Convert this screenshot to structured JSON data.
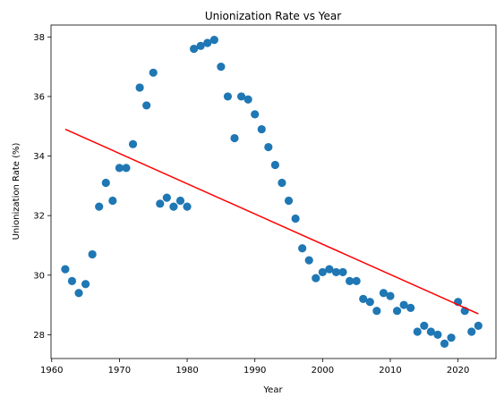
{
  "chart_data": {
    "type": "scatter",
    "title": "Unionization Rate vs Year",
    "xlabel": "Year",
    "ylabel": "Unionization Rate (%)",
    "xlim": [
      1959.9,
      2025.6
    ],
    "ylim": [
      27.2,
      38.4
    ],
    "xticks": [
      1960,
      1970,
      1980,
      1990,
      2000,
      2010,
      2020
    ],
    "yticks": [
      28,
      30,
      32,
      34,
      36,
      38
    ],
    "grid": false,
    "legend": "none",
    "series": [
      {
        "kind": "points",
        "color": "#1f77b4",
        "x": [
          1962,
          1963,
          1964,
          1965,
          1966,
          1967,
          1968,
          1969,
          1970,
          1971,
          1972,
          1973,
          1974,
          1975,
          1976,
          1977,
          1978,
          1979,
          1980,
          1981,
          1982,
          1983,
          1984,
          1985,
          1986,
          1987,
          1988,
          1989,
          1990,
          1991,
          1992,
          1993,
          1994,
          1995,
          1996,
          1997,
          1998,
          1999,
          2000,
          2001,
          2002,
          2003,
          2004,
          2005,
          2006,
          2007,
          2008,
          2009,
          2010,
          2011,
          2012,
          2013,
          2014,
          2015,
          2016,
          2017,
          2018,
          2019,
          2020,
          2021,
          2022,
          2023
        ],
        "y": [
          30.2,
          29.8,
          29.4,
          29.7,
          30.7,
          32.3,
          33.1,
          32.5,
          33.6,
          33.6,
          34.4,
          36.3,
          35.7,
          36.8,
          32.4,
          32.6,
          32.3,
          32.5,
          32.3,
          37.6,
          37.7,
          37.8,
          37.9,
          37.0,
          36.0,
          34.6,
          36.0,
          35.9,
          35.4,
          34.9,
          34.3,
          33.7,
          33.1,
          32.5,
          31.9,
          30.9,
          30.5,
          29.9,
          30.1,
          30.2,
          30.1,
          30.1,
          29.8,
          29.8,
          29.2,
          29.1,
          28.8,
          29.4,
          29.3,
          28.8,
          29.0,
          28.9,
          28.1,
          28.3,
          28.1,
          28.0,
          27.7,
          27.9,
          29.1,
          28.8,
          28.1,
          28.3
        ]
      },
      {
        "kind": "trend-line",
        "color": "#ff0000",
        "x": [
          1962,
          2023
        ],
        "y": [
          34.9,
          28.7
        ]
      }
    ]
  }
}
